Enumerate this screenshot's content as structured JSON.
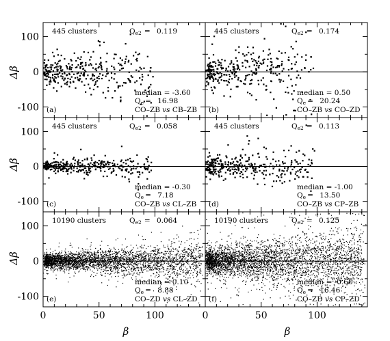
{
  "chart_data": {
    "type": "scatter",
    "xlabel": "β",
    "ylabel": "Δβ",
    "xlim": [
      0,
      145
    ],
    "ylim": [
      -130,
      140
    ],
    "xticks": [
      "0",
      "50",
      "100"
    ],
    "yticks": [
      "100",
      "0",
      "-100"
    ],
    "zero_line": true,
    "panels": [
      {
        "id": "a",
        "tag": "(a)",
        "clusters": "445 clusters",
        "q_top_label": "Q",
        "q_top_sub": "e2",
        "q_top_value": "0.119",
        "median": "median = -3.60",
        "q_label": "Q",
        "q_sub": "e",
        "q_value": "16.98",
        "comparison": [
          "CO–ZB",
          "vs",
          "CB–ZB"
        ],
        "n_points": 330,
        "spread": 30,
        "seed": 11
      },
      {
        "id": "b",
        "tag": "(b)",
        "clusters": "445 clusters",
        "q_top_label": "Q",
        "q_top_sub": "e2",
        "q_top_value": "0.174",
        "median": "median =  0.50",
        "q_label": "Q",
        "q_sub": "e",
        "q_value": "20.24",
        "comparison": [
          "CO–ZB",
          "vs",
          "CO–ZD"
        ],
        "n_points": 330,
        "spread": 34,
        "seed": 23
      },
      {
        "id": "c",
        "tag": "(c)",
        "clusters": "445 clusters",
        "q_top_label": "Q",
        "q_top_sub": "e2",
        "q_top_value": "0.058",
        "median": "median = -0.30",
        "q_label": "Q",
        "q_sub": "e",
        "q_value": "7.18",
        "comparison": [
          "CO–ZB",
          "vs",
          "CL–ZB"
        ],
        "n_points": 330,
        "spread": 12,
        "seed": 37
      },
      {
        "id": "d",
        "tag": "(d)",
        "clusters": "445 clusters",
        "q_top_label": "Q",
        "q_top_sub": "e2",
        "q_top_value": "0.113",
        "median": "median = -1.00",
        "q_label": "Q",
        "q_sub": "e",
        "q_value": "13.50",
        "comparison": [
          "CO–ZB",
          "vs",
          "CP–ZB"
        ],
        "n_points": 330,
        "spread": 22,
        "seed": 41
      },
      {
        "id": "e",
        "tag": "(e)",
        "clusters": "10190 clusters",
        "q_top_label": "Q",
        "q_top_sub": "e2",
        "q_top_value": "0.064",
        "median": "median =  0.10",
        "q_label": "Q",
        "q_sub": "e",
        "q_value": "8.88",
        "comparison": [
          "CO–ZD",
          "vs",
          "CL–ZD"
        ],
        "n_points": 3200,
        "spread": 16,
        "seed": 53
      },
      {
        "id": "f",
        "tag": "(f)",
        "clusters": "10190 clusters",
        "q_top_label": "Q",
        "q_top_sub": "e2",
        "q_top_value": "0.125",
        "median": "median = -0.60",
        "q_label": "Q",
        "q_sub": "e",
        "q_value": "16.46",
        "comparison": [
          "CO–ZD",
          "vs",
          "CP–ZD"
        ],
        "n_points": 3600,
        "spread": 28,
        "seed": 67
      }
    ]
  }
}
